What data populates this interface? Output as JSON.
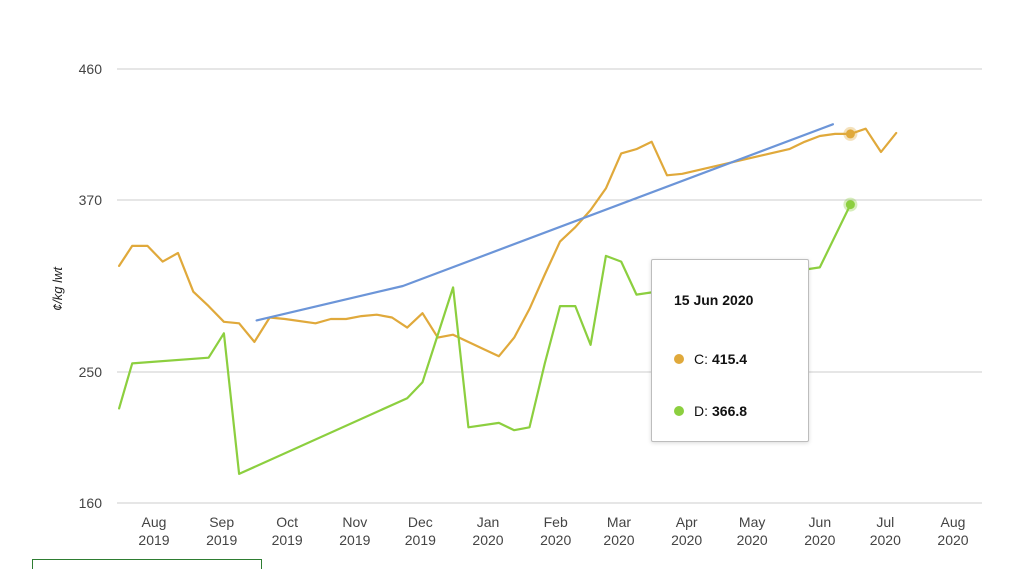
{
  "chart_data": {
    "type": "line",
    "ylabel": "¢/kg lwt",
    "ylim": [
      160,
      460
    ],
    "yticks": [
      160,
      250,
      370,
      460
    ],
    "grid": true,
    "xticks": [
      {
        "month": "Aug",
        "year": "2019",
        "date": "2019-08-01"
      },
      {
        "month": "Sep",
        "year": "2019",
        "date": "2019-09-01"
      },
      {
        "month": "Oct",
        "year": "2019",
        "date": "2019-10-01"
      },
      {
        "month": "Nov",
        "year": "2019",
        "date": "2019-11-01"
      },
      {
        "month": "Dec",
        "year": "2019",
        "date": "2019-12-01"
      },
      {
        "month": "Jan",
        "year": "2020",
        "date": "2020-01-01"
      },
      {
        "month": "Feb",
        "year": "2020",
        "date": "2020-02-01"
      },
      {
        "month": "Mar",
        "year": "2020",
        "date": "2020-03-01"
      },
      {
        "month": "Apr",
        "year": "2020",
        "date": "2020-04-01"
      },
      {
        "month": "May",
        "year": "2020",
        "date": "2020-05-01"
      },
      {
        "month": "Jun",
        "year": "2020",
        "date": "2020-06-01"
      },
      {
        "month": "Jul",
        "year": "2020",
        "date": "2020-07-01"
      },
      {
        "month": "Aug",
        "year": "2020",
        "date": "2020-08-01"
      }
    ],
    "series": [
      {
        "name": "C",
        "color": "#e0a93b",
        "points": [
          [
            "2019-07-16",
            324
          ],
          [
            "2019-07-22",
            338
          ],
          [
            "2019-07-29",
            338
          ],
          [
            "2019-08-05",
            327
          ],
          [
            "2019-08-12",
            333
          ],
          [
            "2019-08-19",
            306
          ],
          [
            "2019-08-26",
            296
          ],
          [
            "2019-09-02",
            285
          ],
          [
            "2019-09-09",
            284
          ],
          [
            "2019-09-16",
            271
          ],
          [
            "2019-09-23",
            288
          ],
          [
            "2019-09-30",
            287
          ],
          [
            "2019-10-14",
            284
          ],
          [
            "2019-10-21",
            287
          ],
          [
            "2019-10-28",
            287
          ],
          [
            "2019-11-04",
            289
          ],
          [
            "2019-11-11",
            290
          ],
          [
            "2019-11-18",
            288
          ],
          [
            "2019-11-25",
            281
          ],
          [
            "2019-12-02",
            291
          ],
          [
            "2019-12-09",
            274
          ],
          [
            "2019-12-16",
            276
          ],
          [
            "2019-12-30",
            266
          ],
          [
            "2020-01-06",
            261
          ],
          [
            "2020-01-13",
            274
          ],
          [
            "2020-01-20",
            294
          ],
          [
            "2020-01-27",
            318
          ],
          [
            "2020-02-03",
            341
          ],
          [
            "2020-02-10",
            351
          ],
          [
            "2020-02-17",
            363
          ],
          [
            "2020-02-24",
            378
          ],
          [
            "2020-03-02",
            402
          ],
          [
            "2020-03-09",
            405
          ],
          [
            "2020-03-16",
            410
          ],
          [
            "2020-03-23",
            387
          ],
          [
            "2020-03-30",
            388
          ],
          [
            "2020-05-18",
            405
          ],
          [
            "2020-05-25",
            410
          ],
          [
            "2020-06-01",
            414
          ],
          [
            "2020-06-08",
            415.4
          ],
          [
            "2020-06-15",
            415.4
          ],
          [
            "2020-06-22",
            419
          ],
          [
            "2020-06-29",
            403
          ],
          [
            "2020-07-06",
            416
          ]
        ]
      },
      {
        "name": "D",
        "color": "#8ccf3f",
        "points": [
          [
            "2019-07-16",
            225
          ],
          [
            "2019-07-22",
            256
          ],
          [
            "2019-08-26",
            260
          ],
          [
            "2019-09-02",
            277
          ],
          [
            "2019-09-09",
            180
          ],
          [
            "2019-11-25",
            232
          ],
          [
            "2019-12-02",
            243
          ],
          [
            "2019-12-16",
            309
          ],
          [
            "2019-12-23",
            212
          ],
          [
            "2020-01-06",
            215
          ],
          [
            "2020-01-13",
            210
          ],
          [
            "2020-01-20",
            212
          ],
          [
            "2020-01-27",
            256
          ],
          [
            "2020-02-03",
            296
          ],
          [
            "2020-02-10",
            296
          ],
          [
            "2020-02-17",
            269
          ],
          [
            "2020-02-24",
            331
          ],
          [
            "2020-03-02",
            327
          ],
          [
            "2020-03-09",
            304
          ],
          [
            "2020-06-01",
            323
          ],
          [
            "2020-06-15",
            366.8
          ]
        ]
      },
      {
        "name": "",
        "color": "#6c95d8",
        "points": [
          [
            "2019-09-17",
            286
          ],
          [
            "2019-11-23",
            310
          ],
          [
            "2020-06-07",
            422
          ]
        ]
      }
    ],
    "highlight_date": "2020-06-15"
  },
  "tooltip": {
    "date": "15 Jun 2020",
    "rows": [
      {
        "label": "C:",
        "value": "415.4",
        "color": "#e0a93b"
      },
      {
        "label": "D:",
        "value": "366.8",
        "color": "#8ccf3f"
      }
    ]
  }
}
